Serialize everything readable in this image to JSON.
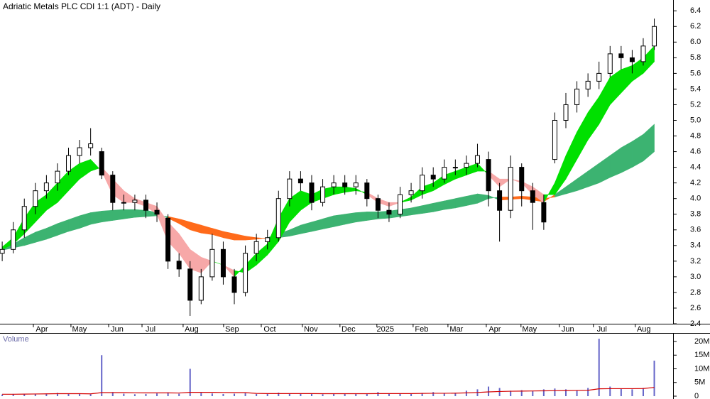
{
  "chart_data": {
    "type": "candlestick",
    "title": "Adriatic Metals PLC CDI 1:1 (ADT) - Daily",
    "xlim": [
      -0.2,
      60.7
    ],
    "xticks": [
      {
        "value": 3.59,
        "label": "Apr"
      },
      {
        "value": 6.99,
        "label": "May"
      },
      {
        "value": 10.4,
        "label": "Jun"
      },
      {
        "value": 13.42,
        "label": "Jul"
      },
      {
        "value": 17.14,
        "label": "Aug"
      },
      {
        "value": 20.8,
        "label": "Sep"
      },
      {
        "value": 24.21,
        "label": "Oct"
      },
      {
        "value": 27.93,
        "label": "Nov"
      },
      {
        "value": 31.33,
        "label": "Dec"
      },
      {
        "value": 34.67,
        "label": "2025"
      },
      {
        "value": 37.95,
        "label": "Feb"
      },
      {
        "value": 41.1,
        "label": "Mar"
      },
      {
        "value": 44.57,
        "label": "Apr"
      },
      {
        "value": 47.71,
        "label": "May"
      },
      {
        "value": 51.18,
        "label": "Jun"
      },
      {
        "value": 54.26,
        "label": "Jul"
      },
      {
        "value": 58.05,
        "label": "Aug"
      }
    ],
    "ylim": [
      2.4,
      6.52
    ],
    "yticks": [
      2.4,
      2.6,
      2.8,
      {
        "value": 3,
        "label": "3.0"
      },
      3.2,
      3.4,
      3.6,
      3.8,
      {
        "value": 4,
        "label": "4.0"
      },
      4.2,
      4.4,
      4.6,
      4.8,
      {
        "value": 5,
        "label": "5.0"
      },
      5.2,
      5.4,
      5.6,
      5.8,
      {
        "value": 6,
        "label": "6.0"
      },
      6.2,
      6.4
    ],
    "up_fill": "#ffffff",
    "down_fill": "#000000",
    "ohlc": {
      "open": [
        3.3,
        3.35,
        3.6,
        3.9,
        4.1,
        4.2,
        4.35,
        4.55,
        4.65,
        4.6,
        4.3,
        3.95,
        3.95,
        3.98,
        3.85,
        3.75,
        3.2,
        3.1,
        2.7,
        3.0,
        3.35,
        3.0,
        2.8,
        3.3,
        3.45,
        3.5,
        4.0,
        4.25,
        4.2,
        3.95,
        4.15,
        4.2,
        4.15,
        4.2,
        4.0,
        3.85,
        3.8,
        4.05,
        4.1,
        4.3,
        4.25,
        4.4,
        4.4,
        4.45,
        4.5,
        4.1,
        3.85,
        4.4,
        4.1,
        3.95,
        4.5,
        5.0,
        5.2,
        5.4,
        5.5,
        5.6,
        5.85,
        5.8,
        5.75,
        5.95
      ],
      "high": [
        3.45,
        3.7,
        4.0,
        4.2,
        4.3,
        4.45,
        4.65,
        4.75,
        4.9,
        4.65,
        4.35,
        4.05,
        4.05,
        4.05,
        3.95,
        3.8,
        3.3,
        3.2,
        3.1,
        3.55,
        3.45,
        3.1,
        3.4,
        3.55,
        3.6,
        4.1,
        4.35,
        4.35,
        4.3,
        4.25,
        4.3,
        4.3,
        4.3,
        4.25,
        4.05,
        3.95,
        4.15,
        4.2,
        4.4,
        4.4,
        4.5,
        4.5,
        4.55,
        4.7,
        4.6,
        4.2,
        4.55,
        4.45,
        4.2,
        4.05,
        5.1,
        5.35,
        5.5,
        5.6,
        5.75,
        5.95,
        5.95,
        5.9,
        6.05,
        6.3
      ],
      "low": [
        3.2,
        3.3,
        3.5,
        3.8,
        4.0,
        4.1,
        4.3,
        4.45,
        4.55,
        4.25,
        3.85,
        3.85,
        3.85,
        3.75,
        3.7,
        3.1,
        3.0,
        2.5,
        2.65,
        2.95,
        2.9,
        2.65,
        2.75,
        3.2,
        3.35,
        3.45,
        3.9,
        4.1,
        3.85,
        3.9,
        4.05,
        4.05,
        4.05,
        3.9,
        3.75,
        3.7,
        3.75,
        3.95,
        4.0,
        4.15,
        4.2,
        4.3,
        4.3,
        4.4,
        3.9,
        3.45,
        3.75,
        3.9,
        3.6,
        3.6,
        4.45,
        4.9,
        5.1,
        5.3,
        5.4,
        5.55,
        5.65,
        5.6,
        5.7,
        5.9
      ],
      "close": [
        3.35,
        3.6,
        3.9,
        4.1,
        4.2,
        4.35,
        4.55,
        4.65,
        4.7,
        4.3,
        3.95,
        3.95,
        3.98,
        3.85,
        3.8,
        3.2,
        3.1,
        2.7,
        3.0,
        3.35,
        3.0,
        2.8,
        3.3,
        3.45,
        3.5,
        4.0,
        4.25,
        4.2,
        3.95,
        4.15,
        4.2,
        4.15,
        4.2,
        4.0,
        3.85,
        3.8,
        4.05,
        4.1,
        4.3,
        4.25,
        4.4,
        4.4,
        4.45,
        4.55,
        4.1,
        3.85,
        4.4,
        4.1,
        3.95,
        3.7,
        5.0,
        5.2,
        5.4,
        5.5,
        5.6,
        5.85,
        5.8,
        5.75,
        5.95,
        6.2
      ]
    },
    "ribbons": [
      {
        "up_color": "#3cb371",
        "down_color": "#ff6a1a",
        "fast": [
          3.36,
          3.42,
          3.5,
          3.57,
          3.62,
          3.68,
          3.73,
          3.78,
          3.82,
          3.84,
          3.85,
          3.86,
          3.86,
          3.85,
          3.82,
          3.75,
          3.68,
          3.6,
          3.56,
          3.54,
          3.5,
          3.47,
          3.47,
          3.48,
          3.5,
          3.55,
          3.6,
          3.66,
          3.7,
          3.74,
          3.78,
          3.8,
          3.82,
          3.83,
          3.83,
          3.84,
          3.86,
          3.88,
          3.91,
          3.94,
          3.97,
          4.0,
          4.03,
          4.06,
          4.04,
          3.98,
          3.99,
          4.0,
          3.98,
          3.96,
          4.05,
          4.15,
          4.25,
          4.35,
          4.45,
          4.55,
          4.65,
          4.73,
          4.82,
          4.95
        ],
        "slow": [
          3.34,
          3.37,
          3.4,
          3.44,
          3.48,
          3.53,
          3.58,
          3.62,
          3.67,
          3.7,
          3.72,
          3.74,
          3.76,
          3.77,
          3.78,
          3.77,
          3.74,
          3.7,
          3.66,
          3.62,
          3.58,
          3.55,
          3.52,
          3.5,
          3.49,
          3.5,
          3.52,
          3.55,
          3.58,
          3.61,
          3.64,
          3.67,
          3.7,
          3.72,
          3.74,
          3.75,
          3.77,
          3.79,
          3.81,
          3.83,
          3.86,
          3.88,
          3.91,
          3.94,
          4.0,
          4.02,
          4.02,
          4.03,
          4.02,
          4.0,
          4.02,
          4.06,
          4.1,
          4.15,
          4.2,
          4.27,
          4.33,
          4.4,
          4.48,
          4.6
        ]
      },
      {
        "up_color": "#00e000",
        "down_color": "#f7a8a8",
        "fast": [
          3.38,
          3.5,
          3.75,
          3.95,
          4.05,
          4.2,
          4.35,
          4.45,
          4.5,
          4.35,
          4.05,
          3.95,
          3.95,
          3.9,
          3.8,
          3.45,
          3.3,
          3.1,
          3.05,
          3.2,
          3.15,
          3.0,
          3.15,
          3.3,
          3.42,
          3.75,
          4.0,
          4.1,
          4.05,
          4.12,
          4.15,
          4.15,
          4.13,
          4.05,
          3.95,
          3.9,
          3.95,
          4.02,
          4.15,
          4.2,
          4.3,
          4.35,
          4.4,
          4.45,
          4.3,
          4.15,
          4.25,
          4.2,
          4.05,
          3.95,
          4.2,
          4.55,
          4.85,
          5.1,
          5.3,
          5.55,
          5.65,
          5.7,
          5.8,
          5.95
        ],
        "slow": [
          3.35,
          3.42,
          3.55,
          3.7,
          3.85,
          3.95,
          4.1,
          4.25,
          4.35,
          4.4,
          4.25,
          4.1,
          4.0,
          3.95,
          3.9,
          3.7,
          3.55,
          3.35,
          3.25,
          3.2,
          3.15,
          3.08,
          3.05,
          3.15,
          3.28,
          3.45,
          3.7,
          3.85,
          3.95,
          4.0,
          4.05,
          4.08,
          4.1,
          4.08,
          4.0,
          3.95,
          3.95,
          3.98,
          4.05,
          4.1,
          4.18,
          4.25,
          4.3,
          4.35,
          4.35,
          4.25,
          4.25,
          4.22,
          4.15,
          4.05,
          4.05,
          4.25,
          4.5,
          4.75,
          4.95,
          5.2,
          5.35,
          5.5,
          5.6,
          5.75
        ]
      }
    ],
    "volume": {
      "label": "Volume",
      "color": "#6464c8",
      "ma_color": "#d40000",
      "ylim": [
        0,
        22000000
      ],
      "yticks": [
        0,
        {
          "value": 5000000,
          "label": "5M"
        },
        {
          "value": 10000000,
          "label": "10M"
        },
        {
          "value": 15000000,
          "label": "15M"
        },
        {
          "value": 20000000,
          "label": "20M"
        }
      ],
      "values": [
        600000,
        800000,
        700000,
        900000,
        1000000,
        1200000,
        800000,
        900000,
        700000,
        15000000,
        1500000,
        900000,
        700000,
        800000,
        1000000,
        1400000,
        900000,
        10000000,
        1200000,
        1000000,
        800000,
        900000,
        1100000,
        800000,
        900000,
        1300000,
        1000000,
        800000,
        900000,
        700000,
        800000,
        900000,
        1000000,
        800000,
        1500000,
        900000,
        1000000,
        800000,
        1200000,
        1500000,
        1000000,
        1200000,
        2000000,
        2500000,
        3500000,
        3000000,
        2000000,
        2200000,
        1800000,
        2500000,
        2800000,
        2500000,
        2000000,
        3000000,
        21000000,
        3500000,
        2800000,
        2500000,
        3000000,
        13000000
      ],
      "ma": [
        700000,
        700000,
        750000,
        800000,
        850000,
        900000,
        900000,
        900000,
        850000,
        1300000,
        1300000,
        1300000,
        1250000,
        1200000,
        1200000,
        1200000,
        1150000,
        1400000,
        1400000,
        1400000,
        1350000,
        1300000,
        1300000,
        1000000,
        950000,
        950000,
        950000,
        950000,
        950000,
        900000,
        900000,
        900000,
        900000,
        900000,
        950000,
        950000,
        950000,
        950000,
        1000000,
        1050000,
        1050000,
        1100000,
        1200000,
        1350000,
        1550000,
        1700000,
        1800000,
        1850000,
        1900000,
        1950000,
        2000000,
        2050000,
        2100000,
        2150000,
        2700000,
        2750000,
        2750000,
        2750000,
        2800000,
        3200000
      ]
    }
  }
}
